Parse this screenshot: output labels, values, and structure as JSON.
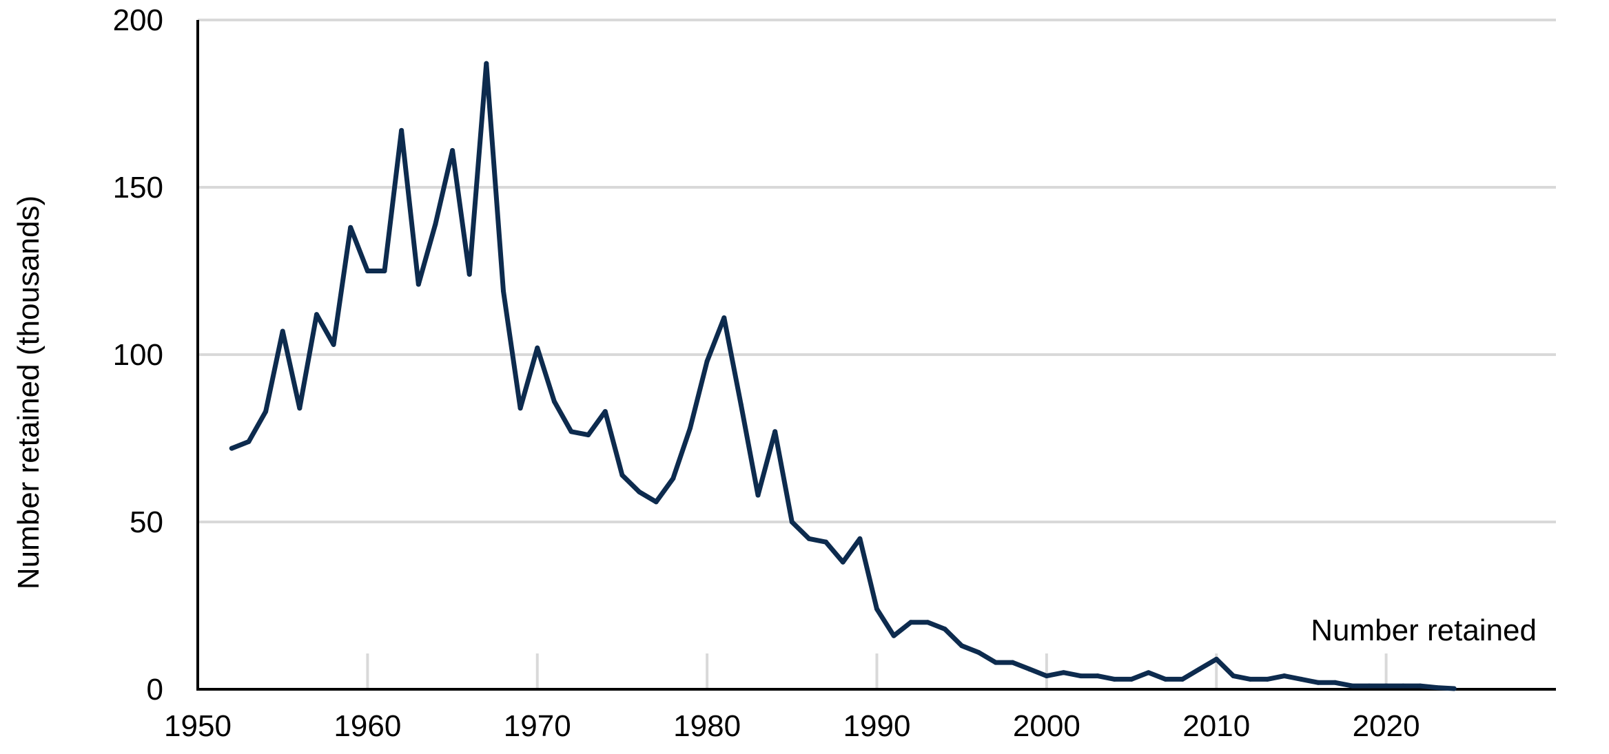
{
  "chart_data": {
    "type": "line",
    "ylabel": "Number retained (thousands)",
    "xlabel": "",
    "xlim": [
      1950,
      2030
    ],
    "ylim": [
      0,
      200
    ],
    "x_ticks": [
      "1950",
      "1960",
      "1970",
      "1980",
      "1990",
      "2000",
      "2010",
      "2020"
    ],
    "y_ticks": [
      "0",
      "50",
      "100",
      "150",
      "200"
    ],
    "grid": "horizontal",
    "colors": {
      "line": "#0d2b4e",
      "grid": "#d9d9d9",
      "axis": "#000000"
    },
    "series": [
      {
        "name": "Number retained",
        "x": [
          1952,
          1953,
          1954,
          1955,
          1956,
          1957,
          1958,
          1959,
          1960,
          1961,
          1962,
          1963,
          1964,
          1965,
          1966,
          1967,
          1968,
          1969,
          1970,
          1971,
          1972,
          1973,
          1974,
          1975,
          1976,
          1977,
          1978,
          1979,
          1980,
          1981,
          1982,
          1983,
          1984,
          1985,
          1986,
          1987,
          1988,
          1989,
          1990,
          1991,
          1992,
          1993,
          1994,
          1995,
          1996,
          1997,
          1998,
          1999,
          2000,
          2001,
          2002,
          2003,
          2004,
          2005,
          2006,
          2007,
          2008,
          2009,
          2010,
          2011,
          2012,
          2013,
          2014,
          2015,
          2016,
          2017,
          2018,
          2019,
          2020,
          2021,
          2022,
          2023,
          2024
        ],
        "values": [
          72,
          74,
          83,
          107,
          84,
          112,
          103,
          138,
          125,
          125,
          167,
          121,
          139,
          161,
          124,
          187,
          119,
          84,
          102,
          86,
          77,
          76,
          83,
          64,
          59,
          56,
          63,
          78,
          98,
          111,
          85,
          58,
          77,
          50,
          45,
          44,
          38,
          45,
          24,
          16,
          20,
          20,
          18,
          13,
          11,
          8,
          8,
          6,
          4,
          5,
          4,
          4,
          3,
          3,
          5,
          3,
          3,
          6,
          9,
          4,
          3,
          3,
          4,
          3,
          2,
          2,
          1,
          1,
          1,
          1,
          1,
          0.5,
          0.2
        ]
      }
    ]
  }
}
